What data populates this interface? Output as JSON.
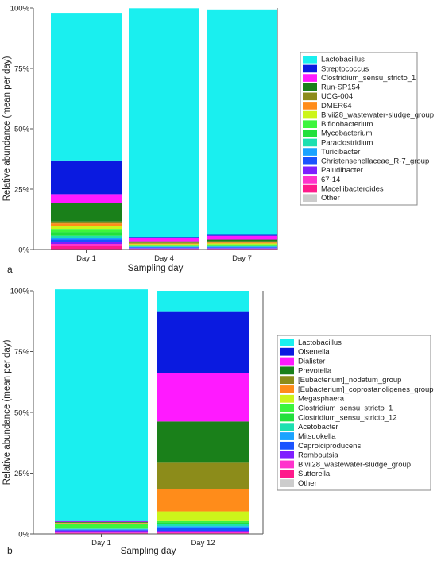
{
  "chart_data": [
    {
      "type": "bar",
      "stacked": true,
      "panel_label": "a",
      "xlabel": "Sampling day",
      "ylabel": "Relative abundance (mean per day)",
      "ylim": [
        0,
        100
      ],
      "ytick_labels": [
        "0%",
        "25%",
        "50%",
        "75%",
        "100%"
      ],
      "categories": [
        "Day 1",
        "Day 4",
        "Day 7"
      ],
      "grid": false,
      "legend_position": "right",
      "series": [
        {
          "name": "Macellibacteroides",
          "color": "#ff1a8c",
          "values": [
            1.5,
            0.2,
            0.2
          ]
        },
        {
          "name": "67-14",
          "color": "#ff33cc",
          "values": [
            0.8,
            0.2,
            0.2
          ]
        },
        {
          "name": "Paludibacter",
          "color": "#7f1fff",
          "values": [
            0.8,
            0.2,
            0.2
          ]
        },
        {
          "name": "Christensenellaceae_R-7_group",
          "color": "#1a53ff",
          "values": [
            1.0,
            0.3,
            0.3
          ]
        },
        {
          "name": "Turicibacter",
          "color": "#1aa3ff",
          "values": [
            0.8,
            0.2,
            0.3
          ]
        },
        {
          "name": "Paraclostridium",
          "color": "#1de0b0",
          "values": [
            0.8,
            0.2,
            0.2
          ]
        },
        {
          "name": "Mycobacterium",
          "color": "#22e03c",
          "values": [
            1.5,
            0.3,
            0.3
          ]
        },
        {
          "name": "Bifidobacterium",
          "color": "#3df53d",
          "values": [
            1.3,
            0.3,
            0.4
          ]
        },
        {
          "name": "Blvii28_wastewater-sludge_group",
          "color": "#ccf51a",
          "values": [
            1.3,
            0.3,
            0.4
          ]
        },
        {
          "name": "DMER64",
          "color": "#ff8c1a",
          "values": [
            1.0,
            0.3,
            0.4
          ]
        },
        {
          "name": "UCG-004",
          "color": "#8c8c1a",
          "values": [
            0.8,
            0.4,
            0.5
          ]
        },
        {
          "name": "Run-SP154",
          "color": "#1a801a",
          "values": [
            7.8,
            0.5,
            0.7
          ]
        },
        {
          "name": "Clostridium_sensu_stricto_1",
          "color": "#ff1aff",
          "values": [
            3.5,
            1.5,
            1.6
          ]
        },
        {
          "name": "Streptococcus",
          "color": "#0a1ae0",
          "values": [
            14.0,
            0.3,
            0.4
          ]
        },
        {
          "name": "Lactobacillus",
          "color": "#1aefef",
          "values": [
            61.1,
            94.7,
            93.3
          ]
        },
        {
          "name": "Other",
          "color": "#cccccc",
          "values": [
            0,
            0,
            0
          ]
        }
      ]
    },
    {
      "type": "bar",
      "stacked": true,
      "panel_label": "b",
      "xlabel": "Sampling day",
      "ylabel": "Relative abundance (mean per day)",
      "ylim": [
        0,
        100
      ],
      "ytick_labels": [
        "0%",
        "25%",
        "50%",
        "75%",
        "100%"
      ],
      "categories": [
        "Day 1",
        "Day 12"
      ],
      "grid": false,
      "legend_position": "right",
      "series": [
        {
          "name": "Sutterella",
          "color": "#ff1a8c",
          "values": [
            0.3,
            0.3
          ]
        },
        {
          "name": "Blvii28_wastewater-sludge_group",
          "color": "#ff33cc",
          "values": [
            0.3,
            0.5
          ]
        },
        {
          "name": "Romboutsia",
          "color": "#7f1fff",
          "values": [
            0.8,
            0.5
          ]
        },
        {
          "name": "Caproiciproducens",
          "color": "#1a53ff",
          "values": [
            0.3,
            1.0
          ]
        },
        {
          "name": "Mitsuokella",
          "color": "#1aa3ff",
          "values": [
            0.3,
            0.9
          ]
        },
        {
          "name": "Acetobacter",
          "color": "#1de0b0",
          "values": [
            0.2,
            0.8
          ]
        },
        {
          "name": "Clostridium_sensu_stricto_12",
          "color": "#22e03c",
          "values": [
            0.3,
            0.8
          ]
        },
        {
          "name": "Clostridium_sensu_stricto_1",
          "color": "#3df53d",
          "values": [
            1.5,
            0.5
          ]
        },
        {
          "name": "Megasphaera",
          "color": "#ccf51a",
          "values": [
            0.3,
            4.0
          ]
        },
        {
          "name": "[Eubacterium]_coprostanoligenes_group",
          "color": "#ff8c1a",
          "values": [
            0.2,
            9.0
          ]
        },
        {
          "name": "[Eubacterium]_nodatum_group",
          "color": "#8c8c1a",
          "values": [
            0.2,
            11.0
          ]
        },
        {
          "name": "Prevotella",
          "color": "#1a801a",
          "values": [
            0.2,
            17.0
          ]
        },
        {
          "name": "Dialister",
          "color": "#ff1aff",
          "values": [
            0.2,
            20.0
          ]
        },
        {
          "name": "Olsenella",
          "color": "#0a1ae0",
          "values": [
            0.2,
            25.0
          ]
        },
        {
          "name": "Lactobacillus",
          "color": "#1aefef",
          "values": [
            95.3,
            8.7
          ]
        },
        {
          "name": "Other",
          "color": "#cccccc",
          "values": [
            0,
            0
          ]
        }
      ]
    }
  ]
}
